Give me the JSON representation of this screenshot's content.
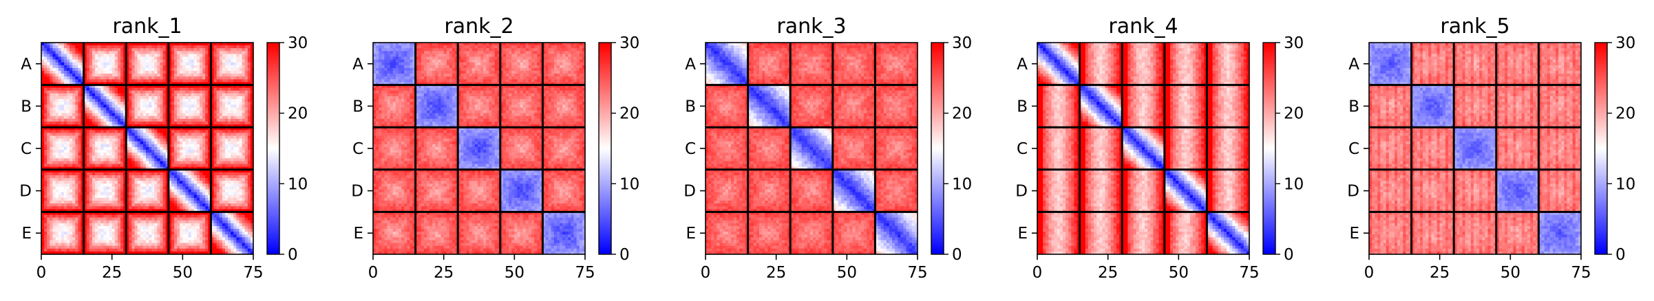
{
  "figure": {
    "panel_titles": [
      "rank_1",
      "rank_2",
      "rank_3",
      "rank_4",
      "rank_5"
    ]
  },
  "chart_data": [
    {
      "type": "heatmap",
      "title": "rank_1",
      "colormap": "bwr",
      "xlim": [
        0,
        75
      ],
      "x_ticks": [
        0,
        25,
        50,
        75
      ],
      "y_block_labels": [
        "A",
        "B",
        "C",
        "D",
        "E"
      ],
      "block_size": 15,
      "matrix_size": 75,
      "block_separators": [
        15,
        30,
        45,
        60
      ],
      "colorbar": {
        "vmin": 0,
        "vmax": 30,
        "ticks": [
          0,
          10,
          20,
          30
        ]
      },
      "within_block_pattern": "low near diagonal rising to ~30 at block edges",
      "diagonal_block_values": {
        "center": 2,
        "edge": 30
      },
      "offdiagonal_block_values": {
        "center": 14,
        "edge": 30
      }
    },
    {
      "type": "heatmap",
      "title": "rank_2",
      "colormap": "bwr",
      "xlim": [
        0,
        75
      ],
      "x_ticks": [
        0,
        25,
        50,
        75
      ],
      "y_block_labels": [
        "A",
        "B",
        "C",
        "D",
        "E"
      ],
      "block_size": 15,
      "matrix_size": 75,
      "block_separators": [
        15,
        30,
        45,
        60
      ],
      "colorbar": {
        "vmin": 0,
        "vmax": 30,
        "ticks": [
          0,
          10,
          20,
          30
        ]
      },
      "within_block_pattern": "diagonal blocks uniformly low; off-diagonal blocks high",
      "diagonal_block_values": {
        "center": 4,
        "edge": 9
      },
      "offdiagonal_block_values": {
        "center": 20,
        "edge": 26
      }
    },
    {
      "type": "heatmap",
      "title": "rank_3",
      "colormap": "bwr",
      "xlim": [
        0,
        75
      ],
      "x_ticks": [
        0,
        25,
        50,
        75
      ],
      "y_block_labels": [
        "A",
        "B",
        "C",
        "D",
        "E"
      ],
      "block_size": 15,
      "matrix_size": 75,
      "block_separators": [
        15,
        30,
        45,
        60
      ],
      "colorbar": {
        "vmin": 0,
        "vmax": 30,
        "ticks": [
          0,
          10,
          20,
          30
        ]
      },
      "within_block_pattern": "diagonal band low inside diagonal blocks; off-diagonal blocks high",
      "diagonal_block_values": {
        "center": 3,
        "edge": 14
      },
      "offdiagonal_block_values": {
        "center": 21,
        "edge": 26
      }
    },
    {
      "type": "heatmap",
      "title": "rank_4",
      "colormap": "bwr",
      "xlim": [
        0,
        75
      ],
      "x_ticks": [
        0,
        25,
        50,
        75
      ],
      "y_block_labels": [
        "A",
        "B",
        "C",
        "D",
        "E"
      ],
      "block_size": 15,
      "matrix_size": 75,
      "block_separators": [
        15,
        30,
        45,
        60
      ],
      "colorbar": {
        "vmin": 0,
        "vmax": 30,
        "ticks": [
          0,
          10,
          20,
          30
        ]
      },
      "within_block_pattern": "strong low diagonal band rising toward block edges; off-diagonal blocks high",
      "diagonal_block_values": {
        "center": 2,
        "edge": 27
      },
      "offdiagonal_block_values": {
        "center": 18,
        "edge": 30
      }
    },
    {
      "type": "heatmap",
      "title": "rank_5",
      "colormap": "bwr",
      "xlim": [
        0,
        75
      ],
      "x_ticks": [
        0,
        25,
        50,
        75
      ],
      "y_block_labels": [
        "A",
        "B",
        "C",
        "D",
        "E"
      ],
      "block_size": 15,
      "matrix_size": 75,
      "block_separators": [
        15,
        30,
        45,
        60
      ],
      "colorbar": {
        "vmin": 0,
        "vmax": 30,
        "ticks": [
          0,
          10,
          20,
          30
        ]
      },
      "within_block_pattern": "diagonal blocks low; off-diagonal blocks pale red with vertical striping",
      "diagonal_block_values": {
        "center": 5,
        "edge": 9
      },
      "offdiagonal_block_values": {
        "center": 20,
        "edge": 23
      }
    }
  ]
}
